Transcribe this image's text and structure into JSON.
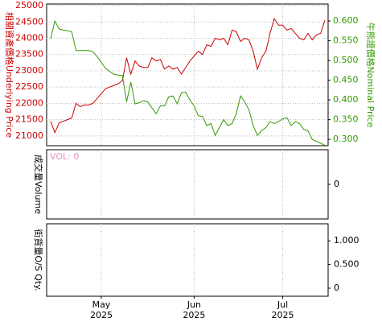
{
  "chart_data": [
    {
      "type": "line",
      "ylabel": "相關資產價格Underlying Price",
      "y2label": "牛熊證價格Nominal Price",
      "categories": [
        null,
        null,
        null,
        null,
        null,
        null,
        null,
        null,
        null,
        null,
        null,
        null,
        "May 2025",
        null,
        null,
        null,
        null,
        null,
        null,
        null,
        null,
        null,
        null,
        null,
        null,
        null,
        null,
        null,
        null,
        null,
        null,
        null,
        null,
        null,
        "Jun 2025",
        null,
        null,
        null,
        null,
        null,
        null,
        null,
        null,
        null,
        null,
        null,
        null,
        null,
        null,
        null,
        null,
        null,
        null,
        null,
        null,
        "Jul 2025",
        null,
        null,
        null,
        null,
        null,
        null,
        null,
        null,
        null,
        null
      ],
      "series": [
        {
          "name": "Underlying Price",
          "color": "#cc0000",
          "axis": "y",
          "values": [
            21450,
            21100,
            21400,
            21450,
            21500,
            21550,
            22000,
            21900,
            21950,
            21950,
            22000,
            22150,
            22300,
            22450,
            22500,
            22550,
            22600,
            22700,
            23400,
            22900,
            23300,
            23150,
            23100,
            23100,
            23400,
            23300,
            23350,
            23050,
            23150,
            23050,
            23100,
            22900,
            23100,
            23300,
            23450,
            23600,
            23500,
            23800,
            23750,
            24000,
            23950,
            24000,
            23800,
            24250,
            24200,
            23900,
            24000,
            23950,
            23600,
            23050,
            23400,
            23600,
            24150,
            24600,
            24400,
            24400,
            24250,
            24300,
            24150,
            24000,
            23950,
            24150,
            23950,
            24100,
            24150,
            24550
          ]
        },
        {
          "name": "Nominal Price",
          "color": "#339900",
          "axis": "y2",
          "values": [
            0.555,
            0.6,
            0.58,
            0.577,
            0.575,
            0.573,
            0.525,
            0.525,
            0.525,
            0.525,
            0.522,
            0.51,
            0.495,
            0.48,
            0.472,
            0.465,
            0.463,
            0.462,
            0.395,
            0.445,
            0.39,
            0.393,
            0.398,
            0.395,
            0.38,
            0.365,
            0.385,
            0.385,
            0.408,
            0.41,
            0.39,
            0.418,
            0.42,
            0.4,
            0.385,
            0.36,
            0.358,
            0.335,
            0.34,
            0.31,
            0.33,
            0.35,
            0.335,
            0.34,
            0.365,
            0.41,
            0.395,
            0.375,
            0.335,
            0.31,
            0.322,
            0.33,
            0.345,
            0.34,
            0.345,
            0.352,
            0.355,
            0.335,
            0.345,
            0.34,
            0.325,
            0.322,
            0.3,
            0.295,
            0.29,
            0.285
          ]
        }
      ],
      "ylim": [
        20700,
        25050
      ],
      "yticks": [
        21000,
        21500,
        22000,
        22500,
        23000,
        23500,
        24000,
        24500,
        25000
      ],
      "y2lim": [
        0.284,
        0.643
      ],
      "y2ticks": [
        {
          "value": 0.3,
          "label": "0.300"
        },
        {
          "value": 0.35,
          "label": "0.350"
        },
        {
          "value": 0.4,
          "label": "0.400"
        },
        {
          "value": 0.45,
          "label": "0.450"
        },
        {
          "value": 0.5,
          "label": "0.500"
        },
        {
          "value": 0.55,
          "label": "0.550"
        },
        {
          "value": 0.6,
          "label": "0.600"
        }
      ],
      "grid": true
    },
    {
      "type": "bar",
      "ylabel": "成交量Volume",
      "annotation": "VOL: 0",
      "ylim": [
        -1,
        1
      ],
      "yticks": [
        0
      ],
      "grid": false
    },
    {
      "type": "line",
      "ylabel": "街貨量O/S Qty.",
      "ylim": [
        -0.17,
        1.36
      ],
      "yticks": [
        0,
        {
          "value": 0.5,
          "label": "0.500"
        },
        {
          "value": 1,
          "label": "1.000"
        }
      ],
      "grid": false
    }
  ]
}
